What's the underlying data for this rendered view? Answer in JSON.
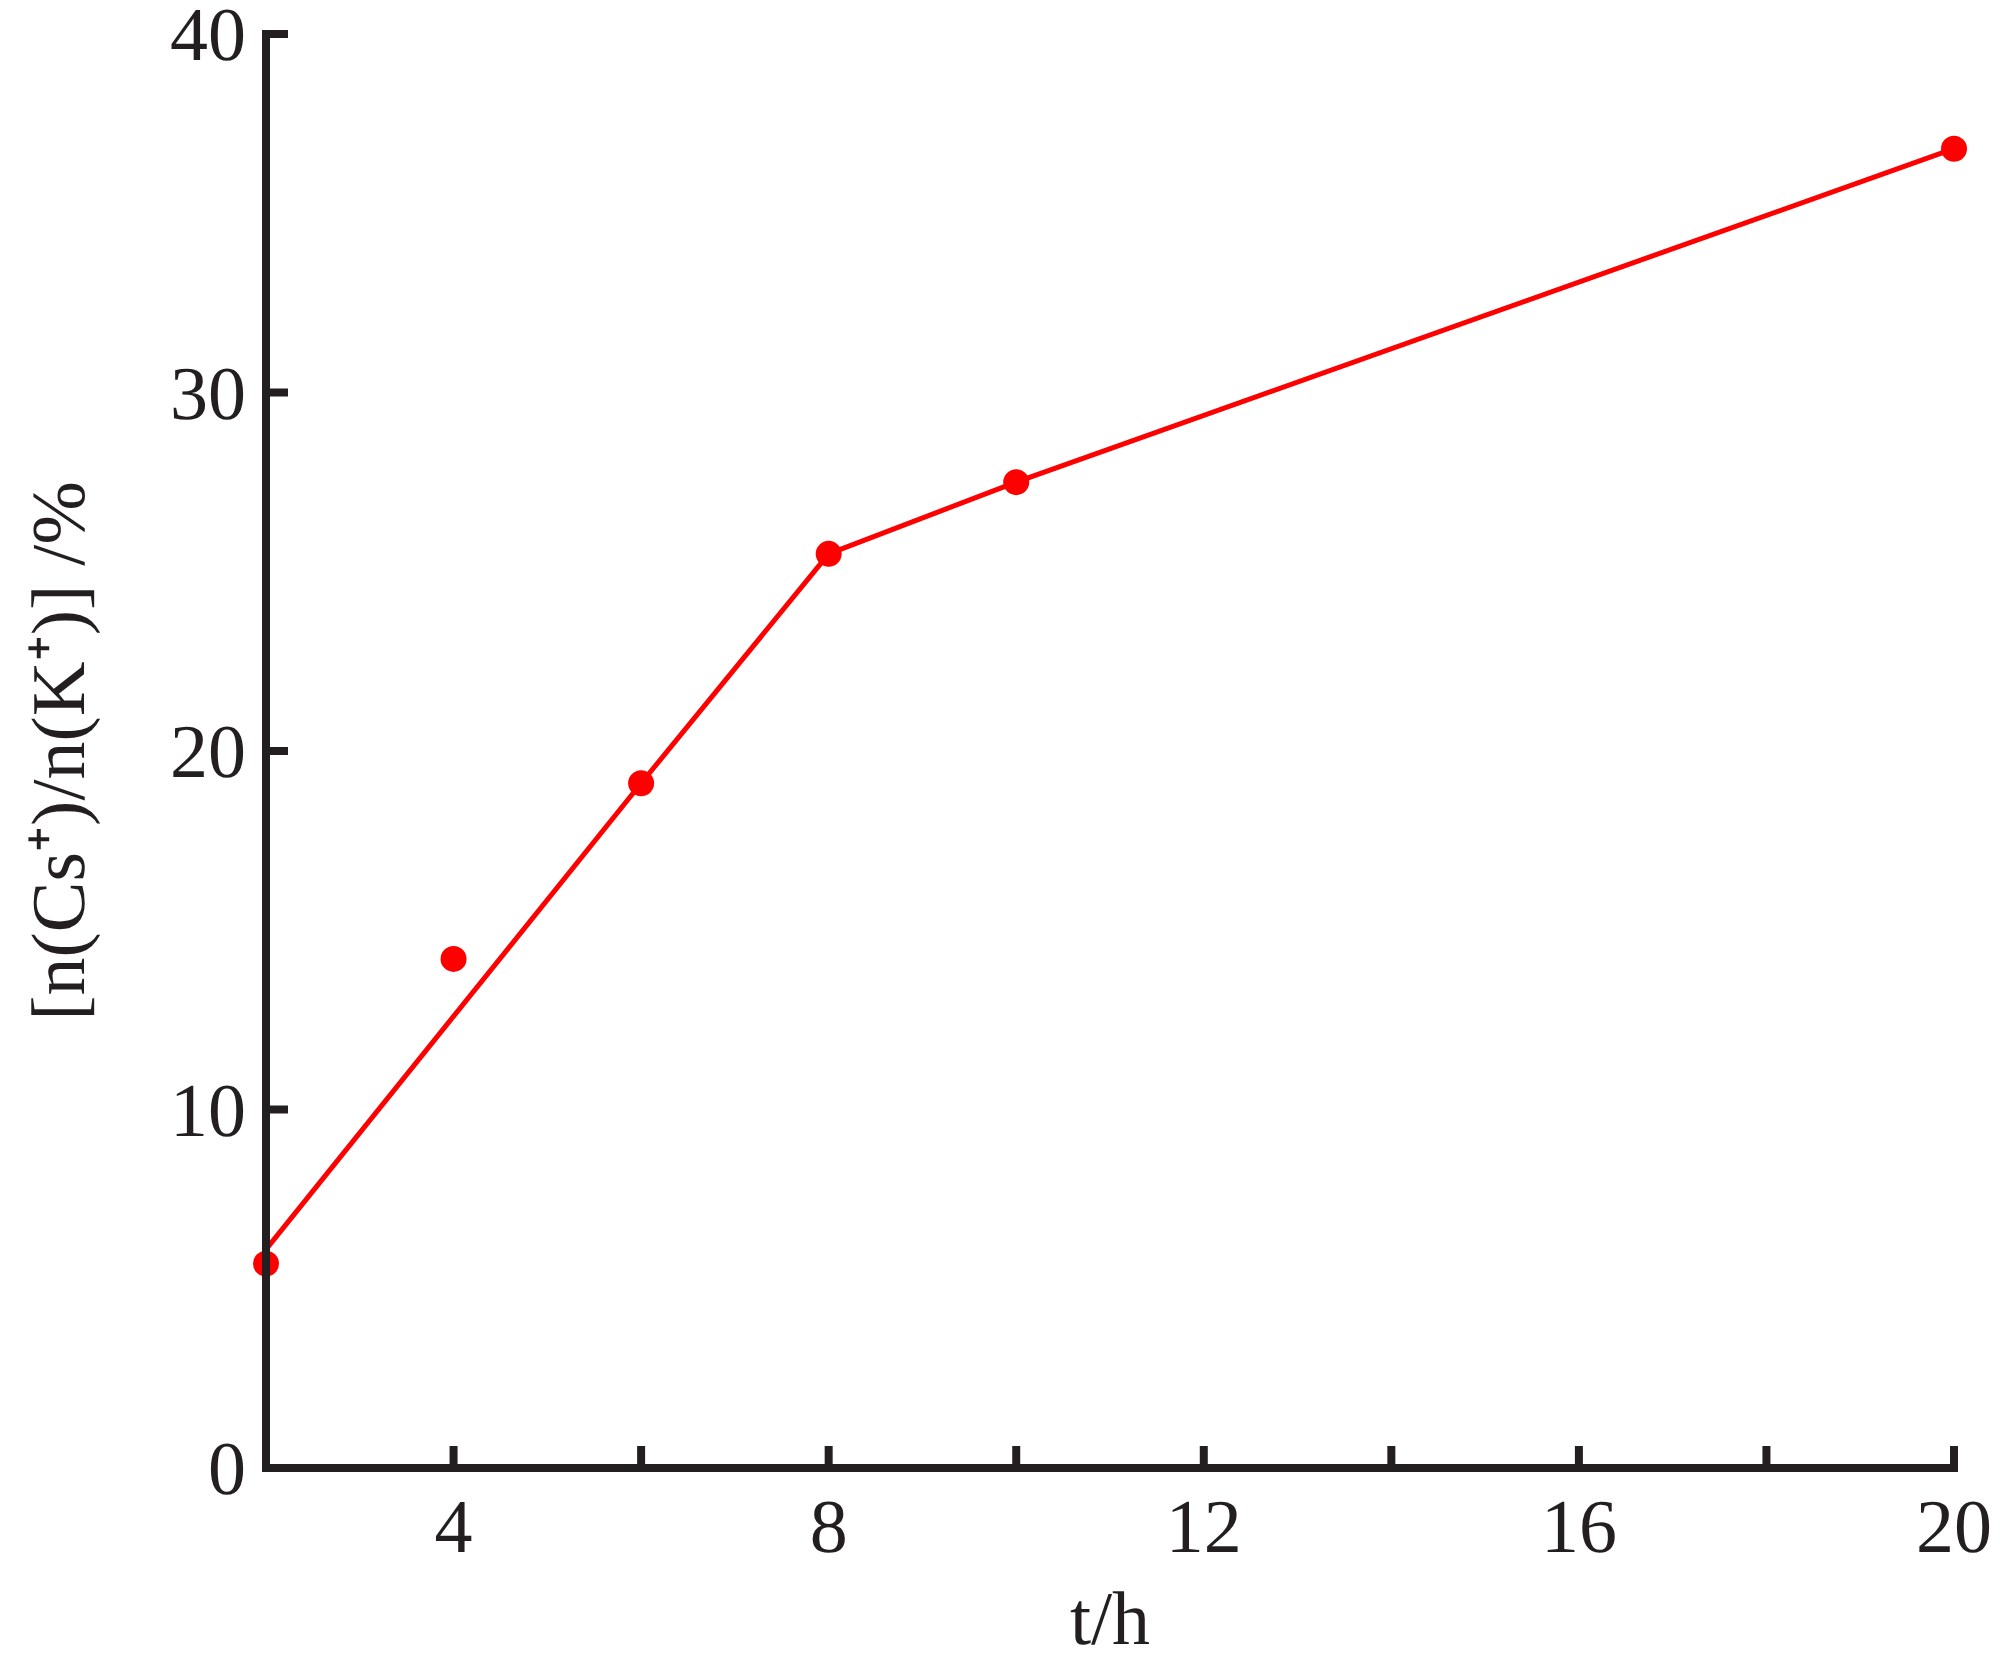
{
  "chart_data": {
    "type": "line",
    "xlabel": "t/h",
    "ylabel": "[n(Cs⁺)/n(K⁺)] /%",
    "xlim": [
      2,
      20
    ],
    "xticks": [
      4,
      {
        "value": 6,
        "label": null
      },
      8,
      {
        "value": 10,
        "label": null
      },
      12,
      {
        "value": 14,
        "label": null
      },
      16,
      {
        "value": 18,
        "label": null
      },
      20
    ],
    "ylim": [
      0,
      40
    ],
    "yticks": [
      0,
      10,
      20,
      30,
      40
    ],
    "grid": false,
    "series": [
      {
        "type": "line",
        "color": "#ff0000",
        "x": [
          2,
          6,
          8,
          10,
          20
        ],
        "values": [
          6.1,
          19.1,
          25.5,
          27.5,
          36.8
        ],
        "marker": "none",
        "line_style": "solid"
      },
      {
        "type": "scatter",
        "color": "#ff0000",
        "x": [
          2,
          4,
          6,
          8,
          10,
          20
        ],
        "values": [
          5.7,
          14.2,
          19.1,
          25.5,
          27.5,
          36.8
        ],
        "marker": "circle"
      }
    ]
  }
}
